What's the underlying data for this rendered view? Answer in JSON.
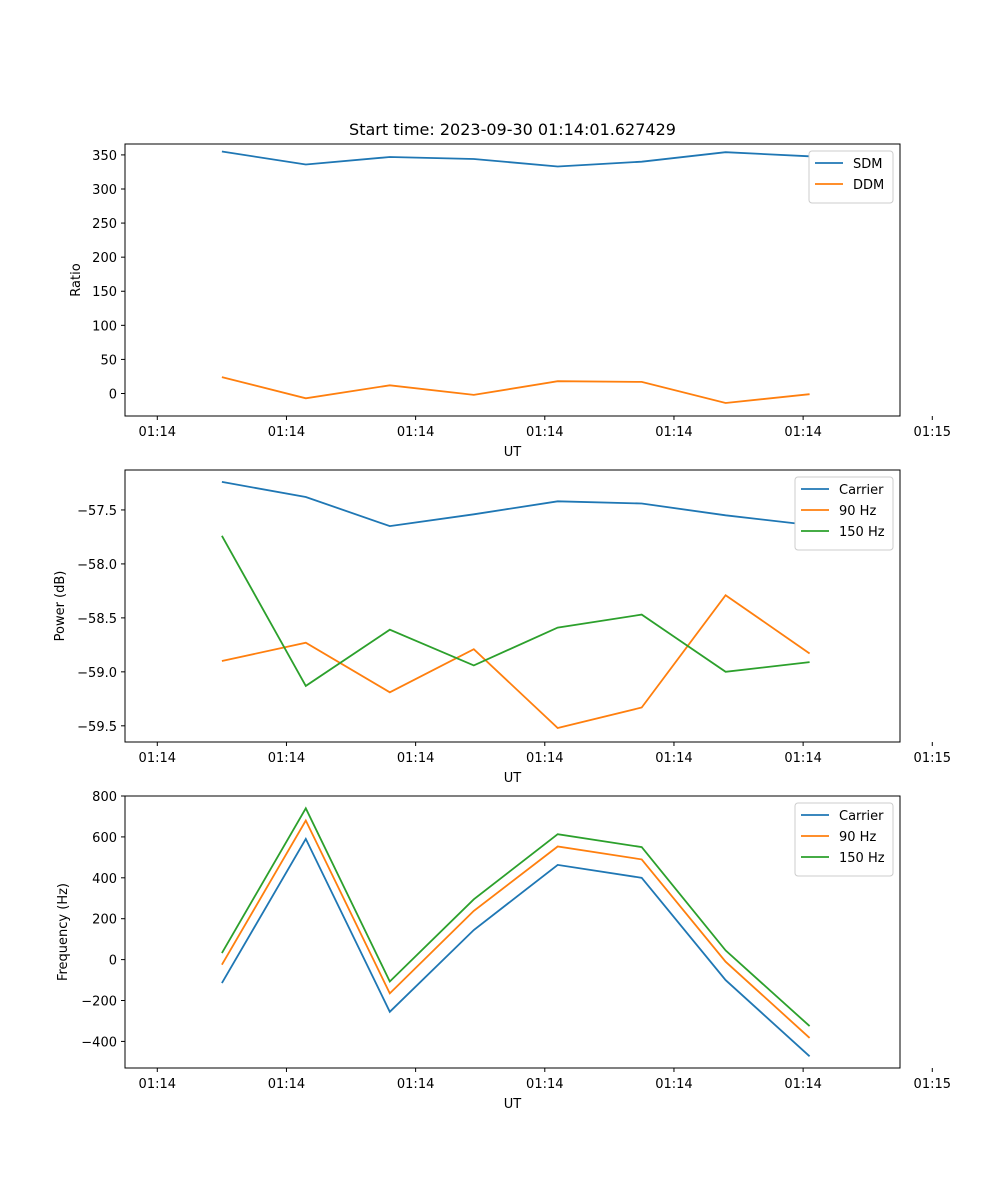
{
  "chart_data": [
    {
      "type": "line",
      "title": "Start time: 2023-09-30 01:14:01.627429",
      "xlabel": "UT",
      "ylabel": "Ratio",
      "x_ticks": [
        "01:14",
        "01:14",
        "01:14",
        "01:14",
        "01:14",
        "01:14",
        "01:15"
      ],
      "x_range": [
        -0.5,
        11.5
      ],
      "x": [
        1,
        2.3,
        3.6,
        4.9,
        6.2,
        7.5,
        8.8,
        10.1
      ],
      "ylim": [
        -33,
        366
      ],
      "y_ticks": [
        0,
        50,
        100,
        150,
        200,
        250,
        300,
        350
      ],
      "legend": "top-right",
      "series": [
        {
          "name": "SDM",
          "color": "#1f77b4",
          "values": [
            355,
            336,
            347,
            344,
            333,
            340,
            354,
            348
          ]
        },
        {
          "name": "DDM",
          "color": "#ff7f0e",
          "values": [
            24,
            -7,
            12,
            -2,
            18,
            17,
            -14,
            -1
          ]
        }
      ]
    },
    {
      "type": "line",
      "title": "",
      "xlabel": "UT",
      "ylabel": "Power (dB)",
      "x_ticks": [
        "01:14",
        "01:14",
        "01:14",
        "01:14",
        "01:14",
        "01:14",
        "01:15"
      ],
      "x_range": [
        -0.5,
        11.5
      ],
      "x": [
        1,
        2.3,
        3.6,
        4.9,
        6.2,
        7.5,
        8.8,
        10.1
      ],
      "ylim": [
        -59.65,
        -57.13
      ],
      "y_ticks": [
        -59.5,
        -59.0,
        -58.5,
        -58.0,
        -57.5
      ],
      "y_tick_labels": [
        "−59.5",
        "−59.0",
        "−58.5",
        "−58.0",
        "−57.5"
      ],
      "legend": "top-right",
      "series": [
        {
          "name": "Carrier",
          "color": "#1f77b4",
          "values": [
            -57.24,
            -57.38,
            -57.65,
            -57.54,
            -57.42,
            -57.44,
            -57.55,
            -57.64
          ]
        },
        {
          "name": "90 Hz",
          "color": "#ff7f0e",
          "values": [
            -58.9,
            -58.73,
            -59.19,
            -58.79,
            -59.52,
            -59.33,
            -58.29,
            -58.83
          ]
        },
        {
          "name": "150 Hz",
          "color": "#2ca02c",
          "values": [
            -57.74,
            -59.13,
            -58.61,
            -58.94,
            -58.59,
            -58.47,
            -59.0,
            -58.91
          ]
        }
      ]
    },
    {
      "type": "line",
      "title": "",
      "xlabel": "UT",
      "ylabel": "Frequency (Hz)",
      "x_ticks": [
        "01:14",
        "01:14",
        "01:14",
        "01:14",
        "01:14",
        "01:14",
        "01:15"
      ],
      "x_range": [
        -0.5,
        11.5
      ],
      "x": [
        1,
        2.3,
        3.6,
        4.9,
        6.2,
        7.5,
        8.8,
        10.1
      ],
      "ylim": [
        -530,
        800
      ],
      "y_ticks": [
        -400,
        -200,
        0,
        200,
        400,
        600,
        800
      ],
      "y_tick_labels": [
        "−400",
        "−200",
        "0",
        "200",
        "400",
        "600",
        "800"
      ],
      "legend": "top-right",
      "series": [
        {
          "name": "Carrier",
          "color": "#1f77b4",
          "values": [
            -115,
            590,
            -255,
            145,
            463,
            400,
            -100,
            -473
          ]
        },
        {
          "name": "90 Hz",
          "color": "#ff7f0e",
          "values": [
            -25,
            680,
            -165,
            238,
            553,
            490,
            -10,
            -383
          ]
        },
        {
          "name": "150 Hz",
          "color": "#2ca02c",
          "values": [
            32,
            740,
            -107,
            295,
            613,
            550,
            45,
            -325
          ]
        }
      ]
    }
  ]
}
